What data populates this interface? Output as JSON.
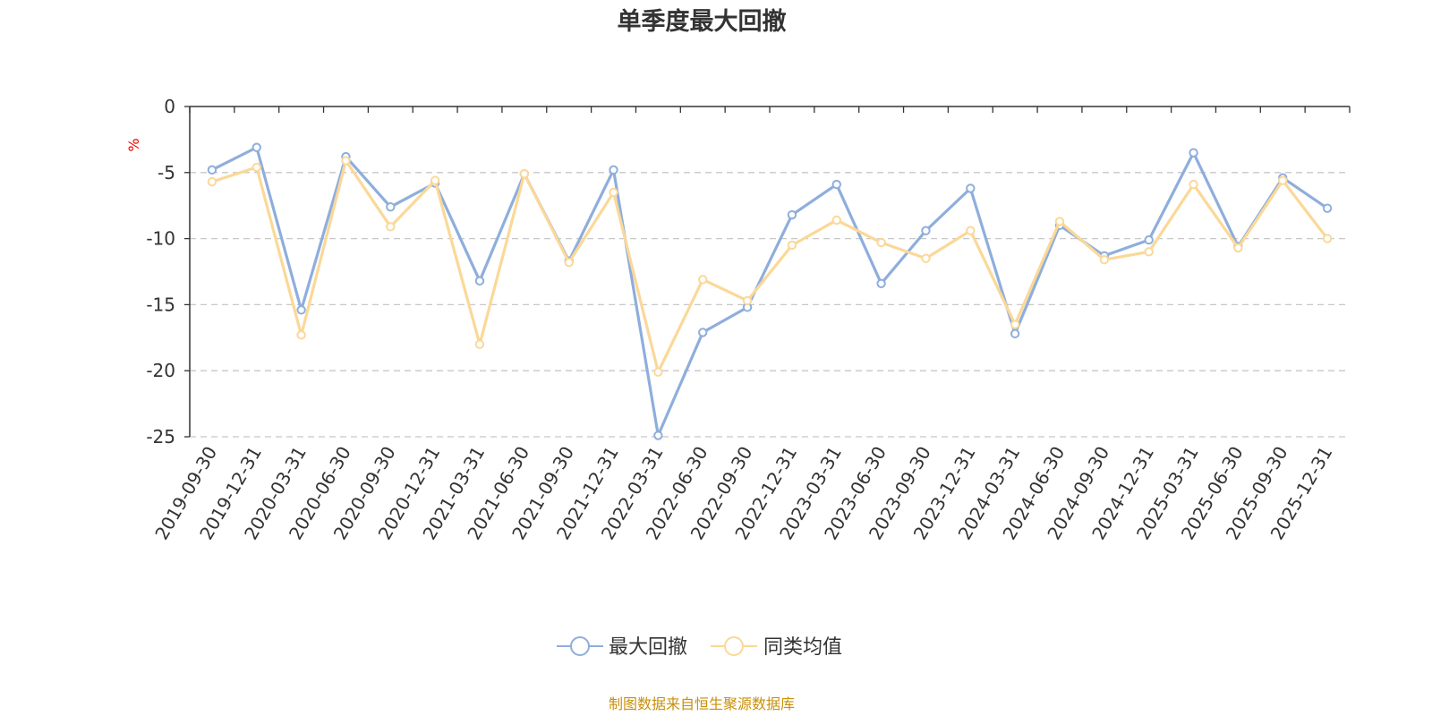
{
  "chart_data": {
    "type": "line",
    "title": "单季度最大回撤",
    "ylabel": "%",
    "ylim": [
      -25,
      0
    ],
    "yticks": [
      0,
      -5,
      -10,
      -15,
      -20,
      -25
    ],
    "grid": true,
    "legend_position": "bottom-center",
    "x": [
      "2019-09-30",
      "2019-12-31",
      "2020-03-31",
      "2020-06-30",
      "2020-09-30",
      "2020-12-31",
      "2021-03-31",
      "2021-06-30",
      "2021-09-30",
      "2021-12-31",
      "2022-03-31",
      "2022-06-30",
      "2022-09-30",
      "2022-12-31",
      "2023-03-31",
      "2023-06-30",
      "2023-09-30",
      "2023-12-31",
      "2024-03-31",
      "2024-06-30",
      "2024-09-30",
      "2024-12-31",
      "2025-03-31",
      "2025-06-30",
      "2025-09-30",
      "2025-12-31"
    ],
    "series": [
      {
        "name": "最大回撤",
        "color": "#8eaedc",
        "values": [
          -4.8,
          -3.1,
          -15.4,
          -3.8,
          -7.6,
          -5.8,
          -13.2,
          -5.1,
          -11.7,
          -4.8,
          -24.9,
          -17.1,
          -15.2,
          -8.2,
          -5.9,
          -13.4,
          -9.4,
          -6.2,
          -17.2,
          -9.0,
          -11.3,
          -10.1,
          -3.5,
          -10.6,
          -5.4,
          -7.7
        ]
      },
      {
        "name": "同类均值",
        "color": "#fbd898",
        "values": [
          -5.7,
          -4.6,
          -17.3,
          -4.1,
          -9.1,
          -5.6,
          -18.0,
          -5.1,
          -11.8,
          -6.5,
          -20.1,
          -13.1,
          -14.7,
          -10.5,
          -8.6,
          -10.3,
          -11.5,
          -9.4,
          -16.5,
          -8.7,
          -11.6,
          -11.0,
          -5.9,
          -10.7,
          -5.6,
          -10.0
        ]
      }
    ],
    "source_note": "制图数据来自恒生聚源数据库"
  }
}
